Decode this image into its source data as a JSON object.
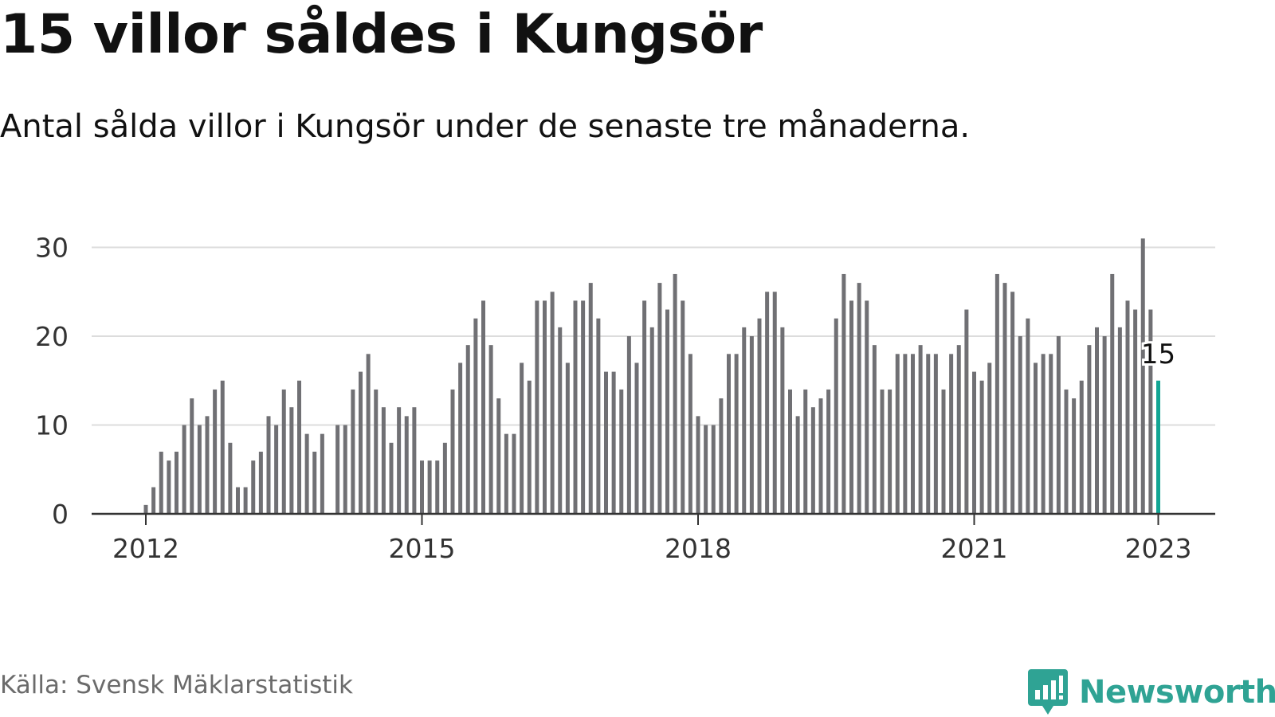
{
  "header": {
    "title": "15 villor såldes i Kungsör",
    "subtitle": "Antal sålda villor i Kungsör under de senaste tre månaderna."
  },
  "footer": {
    "source": "Källa: Svensk Mäklarstatistik",
    "brand": "Newsworthy",
    "brand_icon": "newsworthy-logo-icon"
  },
  "colors": {
    "bar": "#707074",
    "highlight": "#12a594",
    "grid": "#dcdcdc",
    "axis": "#333333",
    "brand": "#2fa394"
  },
  "chart_data": {
    "type": "bar",
    "x_start": "2012-01",
    "x_end": "2023-01",
    "x_step": "month",
    "xticks": [
      "2012",
      "2015",
      "2018",
      "2021",
      "2023"
    ],
    "yticks": [
      0,
      10,
      20,
      30
    ],
    "ylim": [
      0,
      32
    ],
    "grid": true,
    "values": [
      1,
      3,
      7,
      6,
      7,
      10,
      13,
      10,
      11,
      14,
      15,
      8,
      3,
      3,
      6,
      7,
      11,
      10,
      14,
      12,
      15,
      9,
      7,
      9,
      null,
      10,
      10,
      14,
      16,
      18,
      14,
      12,
      8,
      12,
      11,
      12,
      6,
      6,
      6,
      8,
      14,
      17,
      19,
      22,
      24,
      19,
      13,
      9,
      9,
      17,
      15,
      24,
      24,
      25,
      21,
      17,
      24,
      24,
      26,
      22,
      16,
      16,
      14,
      20,
      17,
      24,
      21,
      26,
      23,
      27,
      24,
      18,
      11,
      10,
      10,
      13,
      18,
      18,
      21,
      20,
      22,
      25,
      25,
      21,
      14,
      11,
      14,
      12,
      13,
      14,
      22,
      27,
      24,
      26,
      24,
      19,
      14,
      14,
      18,
      18,
      18,
      19,
      18,
      18,
      14,
      18,
      19,
      23,
      16,
      15,
      17,
      27,
      26,
      25,
      20,
      22,
      17,
      18,
      18,
      20,
      14,
      13,
      15,
      19,
      21,
      20,
      27,
      21,
      24,
      23,
      31,
      23,
      15
    ],
    "highlight_label": "15"
  }
}
